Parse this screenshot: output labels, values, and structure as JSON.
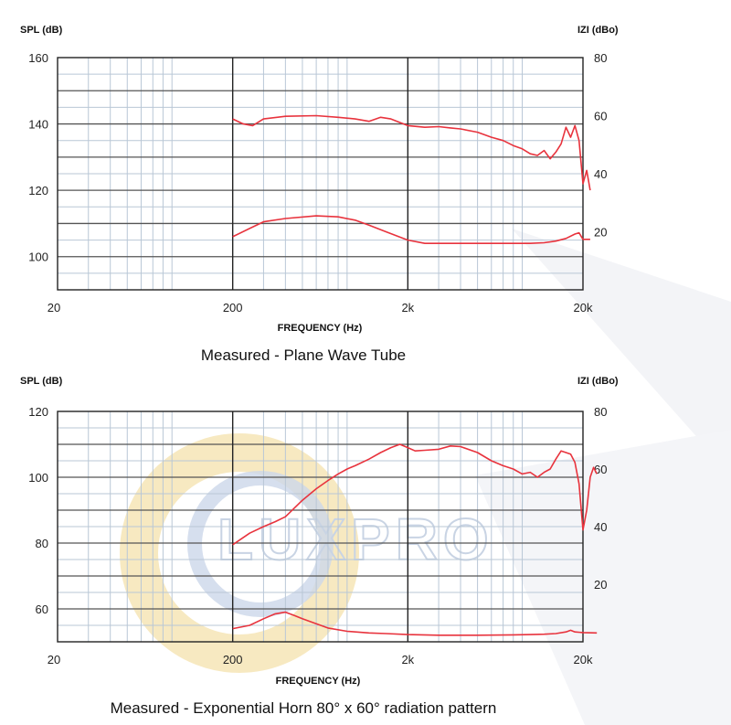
{
  "watermark": {
    "text": "LUXPRO"
  },
  "colors": {
    "curve": "#e8333d",
    "major_grid": "#555555",
    "minor_grid": "#b9c7d6",
    "axis": "#222222"
  },
  "chart_data": [
    {
      "type": "line",
      "x_scale": "log",
      "xlabel": "FREQUENCY (Hz)",
      "ylabel": "SPL (dB)",
      "y2label": "IZI (dBo)",
      "caption": "Measured - Plane Wave Tube",
      "xlim": [
        20,
        20000
      ],
      "ylim": [
        90,
        160
      ],
      "y2lim": [
        0,
        80
      ],
      "x_ticks": [
        20,
        200,
        2000,
        20000
      ],
      "x_tick_labels": [
        "20",
        "200",
        "2k",
        "20k"
      ],
      "y_ticks": [
        100,
        120,
        140,
        160
      ],
      "y_tick_labels": [
        "100",
        "120",
        "140",
        "160"
      ],
      "y2_ticks": [
        20,
        40,
        60,
        80
      ],
      "y2_tick_labels": [
        "20",
        "40",
        "60",
        "80"
      ],
      "series": [
        {
          "axis": "left",
          "points": [
            [
              200,
              141.5
            ],
            [
              230,
              140
            ],
            [
              260,
              139.5
            ],
            [
              300,
              141.5
            ],
            [
              400,
              142.3
            ],
            [
              600,
              142.5
            ],
            [
              800,
              142
            ],
            [
              1000,
              141.5
            ],
            [
              1200,
              140.8
            ],
            [
              1400,
              142
            ],
            [
              1600,
              141.5
            ],
            [
              2000,
              139.5
            ],
            [
              2500,
              139
            ],
            [
              3000,
              139.2
            ],
            [
              3500,
              138.8
            ],
            [
              4000,
              138.5
            ],
            [
              5000,
              137.5
            ],
            [
              6000,
              136
            ],
            [
              7000,
              135
            ],
            [
              8000,
              133.5
            ],
            [
              9000,
              132.5
            ],
            [
              10000,
              131
            ],
            [
              11000,
              130.5
            ],
            [
              12000,
              132
            ],
            [
              13000,
              129.5
            ],
            [
              14000,
              131.5
            ],
            [
              15000,
              134
            ],
            [
              16000,
              139
            ],
            [
              17000,
              136
            ],
            [
              18000,
              139.5
            ],
            [
              19000,
              135
            ],
            [
              20000,
              122
            ],
            [
              21000,
              126
            ],
            [
              22000,
              120
            ]
          ]
        },
        {
          "axis": "left",
          "points": [
            [
              200,
              106
            ],
            [
              250,
              108.5
            ],
            [
              300,
              110.5
            ],
            [
              400,
              111.5
            ],
            [
              600,
              112.3
            ],
            [
              800,
              112
            ],
            [
              1000,
              111
            ],
            [
              1200,
              109.5
            ],
            [
              1500,
              107.5
            ],
            [
              2000,
              105
            ],
            [
              2500,
              104
            ],
            [
              3000,
              104
            ],
            [
              4000,
              104
            ],
            [
              6000,
              104
            ],
            [
              8000,
              104
            ],
            [
              10000,
              104
            ],
            [
              12000,
              104.2
            ],
            [
              14000,
              104.7
            ],
            [
              16000,
              105.5
            ],
            [
              18000,
              106.8
            ],
            [
              19000,
              107.2
            ],
            [
              20000,
              105.2
            ],
            [
              22000,
              105.2
            ]
          ]
        }
      ]
    },
    {
      "type": "line",
      "x_scale": "log",
      "xlabel": "FREQUENCY (Hz)",
      "ylabel": "SPL (dB)",
      "y2label": "IZI (dBo)",
      "caption": "Measured - Exponential Horn 80° x 60° radiation pattern",
      "xlim": [
        20,
        20000
      ],
      "ylim": [
        50,
        120
      ],
      "y2lim": [
        0,
        80
      ],
      "x_ticks": [
        20,
        200,
        2000,
        20000
      ],
      "x_tick_labels": [
        "20",
        "200",
        "2k",
        "20k"
      ],
      "y_ticks": [
        60,
        80,
        100,
        120
      ],
      "y_tick_labels": [
        "60",
        "80",
        "100",
        "120"
      ],
      "y2_ticks": [
        20,
        40,
        60,
        80
      ],
      "y2_tick_labels": [
        "20",
        "40",
        "60",
        "80"
      ],
      "series": [
        {
          "axis": "left",
          "points": [
            [
              200,
              79.5
            ],
            [
              250,
              83
            ],
            [
              300,
              85
            ],
            [
              350,
              86.5
            ],
            [
              400,
              88
            ],
            [
              500,
              93
            ],
            [
              600,
              96.5
            ],
            [
              700,
              99
            ],
            [
              800,
              101
            ],
            [
              900,
              102.5
            ],
            [
              1000,
              103.5
            ],
            [
              1200,
              105.5
            ],
            [
              1400,
              107.5
            ],
            [
              1600,
              109
            ],
            [
              1800,
              110
            ],
            [
              2000,
              109
            ],
            [
              2200,
              108
            ],
            [
              2500,
              108.2
            ],
            [
              3000,
              108.5
            ],
            [
              3500,
              109.5
            ],
            [
              4000,
              109.3
            ],
            [
              5000,
              107.5
            ],
            [
              6000,
              105
            ],
            [
              7000,
              103.5
            ],
            [
              8000,
              102.5
            ],
            [
              9000,
              101
            ],
            [
              10000,
              101.5
            ],
            [
              11000,
              100
            ],
            [
              12000,
              101.5
            ],
            [
              13000,
              102.5
            ],
            [
              14000,
              105.5
            ],
            [
              15000,
              108
            ],
            [
              16000,
              107.5
            ],
            [
              17000,
              107
            ],
            [
              18000,
              104.5
            ],
            [
              19000,
              98
            ],
            [
              20000,
              84
            ],
            [
              21000,
              90
            ],
            [
              22000,
              100
            ],
            [
              23000,
              103
            ],
            [
              24000,
              101
            ]
          ]
        },
        {
          "axis": "left",
          "points": [
            [
              200,
              54
            ],
            [
              250,
              55
            ],
            [
              300,
              57
            ],
            [
              350,
              58.5
            ],
            [
              400,
              59
            ],
            [
              450,
              58
            ],
            [
              500,
              57
            ],
            [
              600,
              55.5
            ],
            [
              700,
              54.2
            ],
            [
              900,
              53.2
            ],
            [
              1200,
              52.7
            ],
            [
              1500,
              52.5
            ],
            [
              2000,
              52.2
            ],
            [
              3000,
              52
            ],
            [
              5000,
              52
            ],
            [
              8000,
              52.1
            ],
            [
              10000,
              52.2
            ],
            [
              12000,
              52.3
            ],
            [
              14000,
              52.5
            ],
            [
              16000,
              53
            ],
            [
              17000,
              53.5
            ],
            [
              18000,
              53
            ],
            [
              20000,
              52.8
            ],
            [
              24000,
              52.7
            ]
          ]
        }
      ]
    }
  ]
}
